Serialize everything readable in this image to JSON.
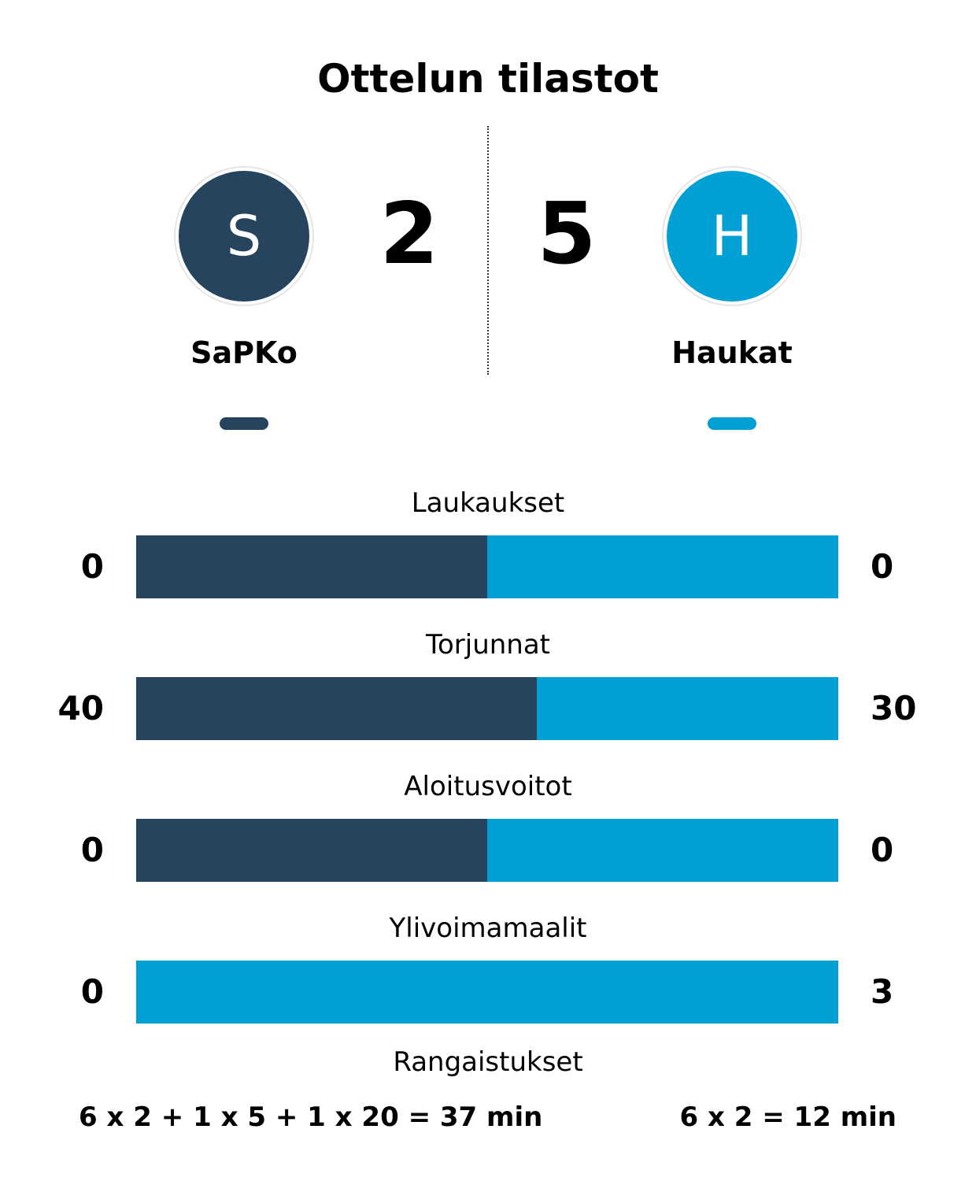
{
  "title": "Ottelun tilastot",
  "colors": {
    "home": "#26445d",
    "away": "#00a0d4"
  },
  "home": {
    "name": "SaPKo",
    "initial": "S",
    "score": "2"
  },
  "away": {
    "name": "Haukat",
    "initial": "H",
    "score": "5"
  },
  "stats": [
    {
      "label": "Laukaukset",
      "home": "0",
      "away": "0",
      "home_share": 0.5
    },
    {
      "label": "Torjunnat",
      "home": "40",
      "away": "30",
      "home_share": 0.571
    },
    {
      "label": "Aloitusvoitot",
      "home": "0",
      "away": "0",
      "home_share": 0.5
    },
    {
      "label": "Ylivoimamaalit",
      "home": "0",
      "away": "3",
      "home_share": 0
    }
  ],
  "penalties": {
    "label": "Rangaistukset",
    "home": "6 x 2 + 1 x 5 + 1 x 20 = 37 min",
    "away": "6 x 2 = 12 min"
  }
}
